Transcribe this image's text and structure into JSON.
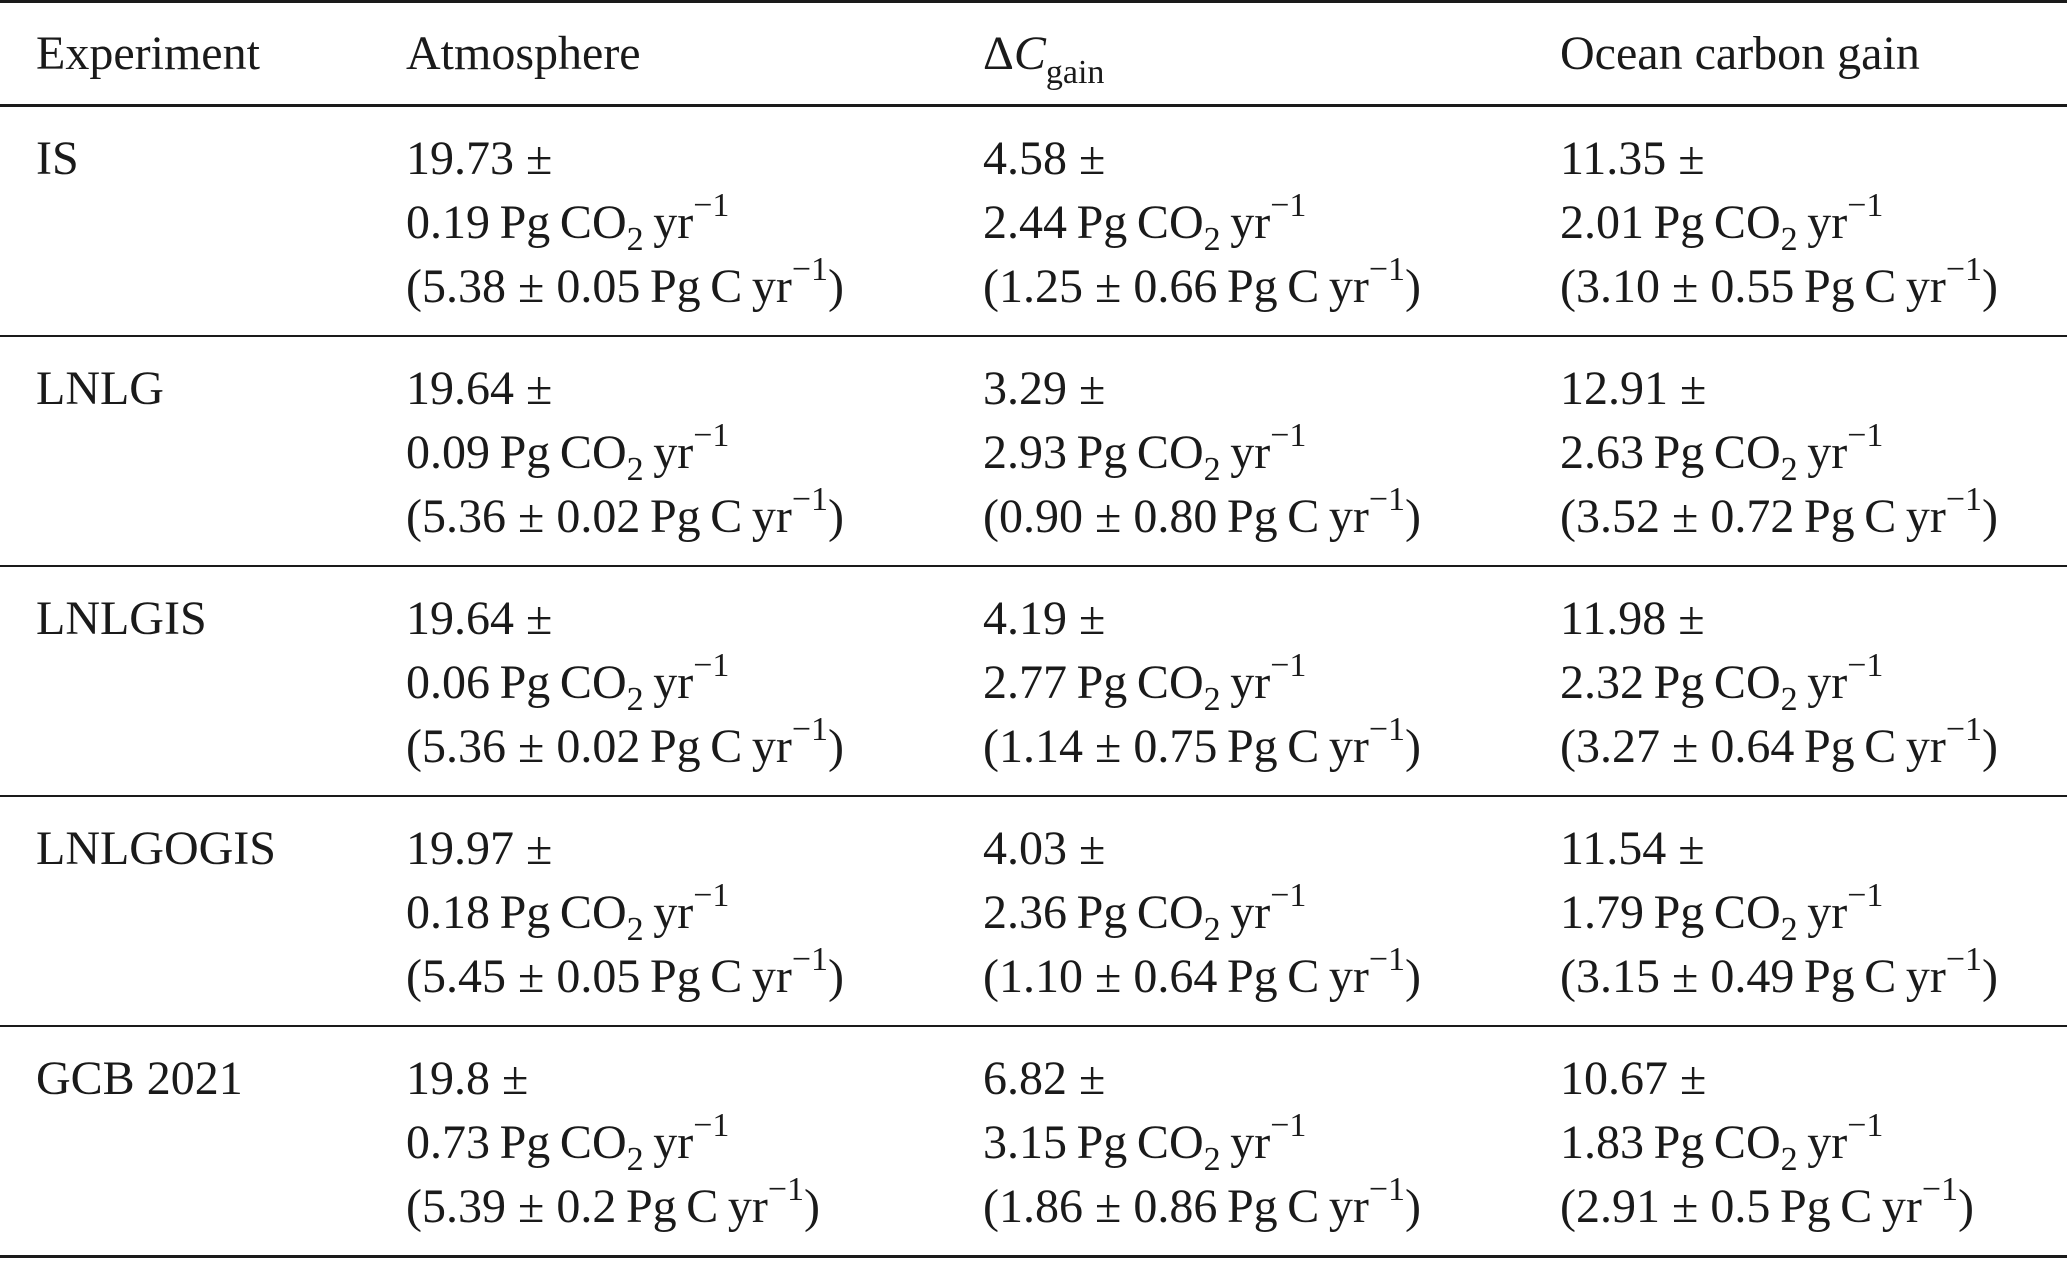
{
  "headers": {
    "experiment": "Experiment",
    "atmosphere": "Atmosphere",
    "delta_prefix": "Δ",
    "delta_var": "C",
    "delta_sub": "gain",
    "ocean": "Ocean carbon gain"
  },
  "units": {
    "pg": "Pg",
    "co2_base": "CO",
    "co2_sub": "2",
    "yr": "yr",
    "inv": "−1",
    "c": "C"
  },
  "rows": [
    {
      "experiment": "IS",
      "atmosphere": {
        "value": "19.73 ±",
        "err": "0.19",
        "pgc": "(5.38 ± 0.05"
      },
      "delta": {
        "value": "4.58 ±",
        "err": "2.44",
        "pgc": "(1.25 ± 0.66"
      },
      "ocean": {
        "value": "11.35 ±",
        "err": "2.01",
        "pgc": "(3.10 ± 0.55"
      }
    },
    {
      "experiment": "LNLG",
      "atmosphere": {
        "value": "19.64 ±",
        "err": "0.09",
        "pgc": "(5.36 ± 0.02"
      },
      "delta": {
        "value": "3.29 ±",
        "err": "2.93",
        "pgc": "(0.90 ± 0.80"
      },
      "ocean": {
        "value": "12.91 ±",
        "err": "2.63",
        "pgc": "(3.52 ± 0.72"
      }
    },
    {
      "experiment": "LNLGIS",
      "atmosphere": {
        "value": "19.64 ±",
        "err": "0.06",
        "pgc": "(5.36 ± 0.02"
      },
      "delta": {
        "value": "4.19 ±",
        "err": "2.77",
        "pgc": "(1.14 ± 0.75"
      },
      "ocean": {
        "value": "11.98 ±",
        "err": "2.32",
        "pgc": "(3.27 ± 0.64"
      }
    },
    {
      "experiment": "LNLGOGIS",
      "atmosphere": {
        "value": "19.97 ±",
        "err": "0.18",
        "pgc": "(5.45 ± 0.05"
      },
      "delta": {
        "value": "4.03 ±",
        "err": "2.36",
        "pgc": "(1.10 ± 0.64"
      },
      "ocean": {
        "value": "11.54 ±",
        "err": "1.79",
        "pgc": "(3.15 ± 0.49"
      }
    },
    {
      "experiment": "GCB 2021",
      "atmosphere": {
        "value": "19.8 ±",
        "err": "0.73",
        "pgc": "(5.39 ± 0.2"
      },
      "delta": {
        "value": "6.82 ±",
        "err": "3.15",
        "pgc": "(1.86 ± 0.86"
      },
      "ocean": {
        "value": "10.67 ±",
        "err": "1.83",
        "pgc": "(2.91 ± 0.5"
      }
    }
  ]
}
